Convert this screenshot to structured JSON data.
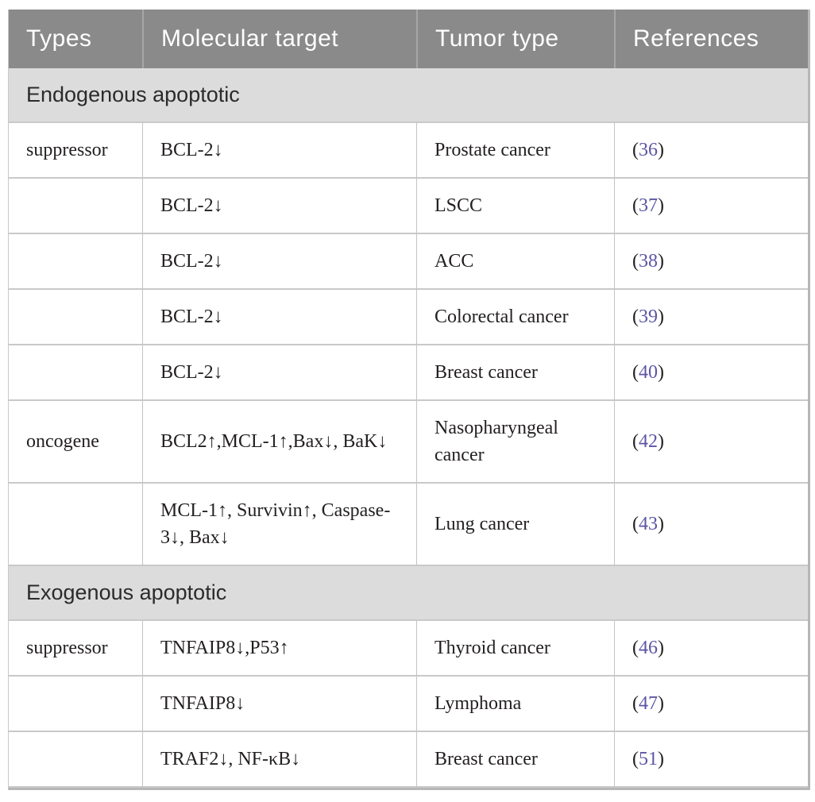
{
  "colors": {
    "header_bg": "#8a8a8a",
    "header_text": "#ffffff",
    "section_bg": "#dcdcdc",
    "section_text": "#2b2b2b",
    "body_text": "#231f20",
    "reference_number": "#5b55a5",
    "grid_line": "#c9c9c9",
    "outer_border": "#b7b7b7"
  },
  "citation": {
    "open": "(",
    "close": ")"
  },
  "table": {
    "columns": [
      "Types",
      "Molecular target",
      "Tumor type",
      "References"
    ],
    "sections": [
      {
        "title": "Endogenous apoptotic",
        "rows": [
          {
            "type": "suppressor",
            "target": "BCL-2↓",
            "tumor": "Prostate cancer",
            "ref": "36"
          },
          {
            "type": "",
            "target": "BCL-2↓",
            "tumor": "LSCC",
            "ref": "37"
          },
          {
            "type": "",
            "target": "BCL-2↓",
            "tumor": "ACC",
            "ref": "38"
          },
          {
            "type": "",
            "target": "BCL-2↓",
            "tumor": "Colorectal cancer",
            "ref": "39"
          },
          {
            "type": "",
            "target": "BCL-2↓",
            "tumor": "Breast cancer",
            "ref": "40"
          },
          {
            "type": "oncogene",
            "target": "BCL2↑,MCL-1↑,Bax↓, BaK↓",
            "tumor": "Nasopharyngeal cancer",
            "ref": "42"
          },
          {
            "type": "",
            "target": "MCL-1↑, Survivin↑, Caspase-3↓, Bax↓",
            "tumor": "Lung cancer",
            "ref": "43"
          }
        ]
      },
      {
        "title": "Exogenous apoptotic",
        "rows": [
          {
            "type": "suppressor",
            "target": "TNFAIP8↓,P53↑",
            "tumor": "Thyroid cancer",
            "ref": "46"
          },
          {
            "type": "",
            "target": "TNFAIP8↓",
            "tumor": "Lymphoma",
            "ref": "47"
          },
          {
            "type": "",
            "target": "TRAF2↓, NF-κB↓",
            "tumor": "Breast cancer",
            "ref": "51"
          }
        ]
      }
    ]
  }
}
